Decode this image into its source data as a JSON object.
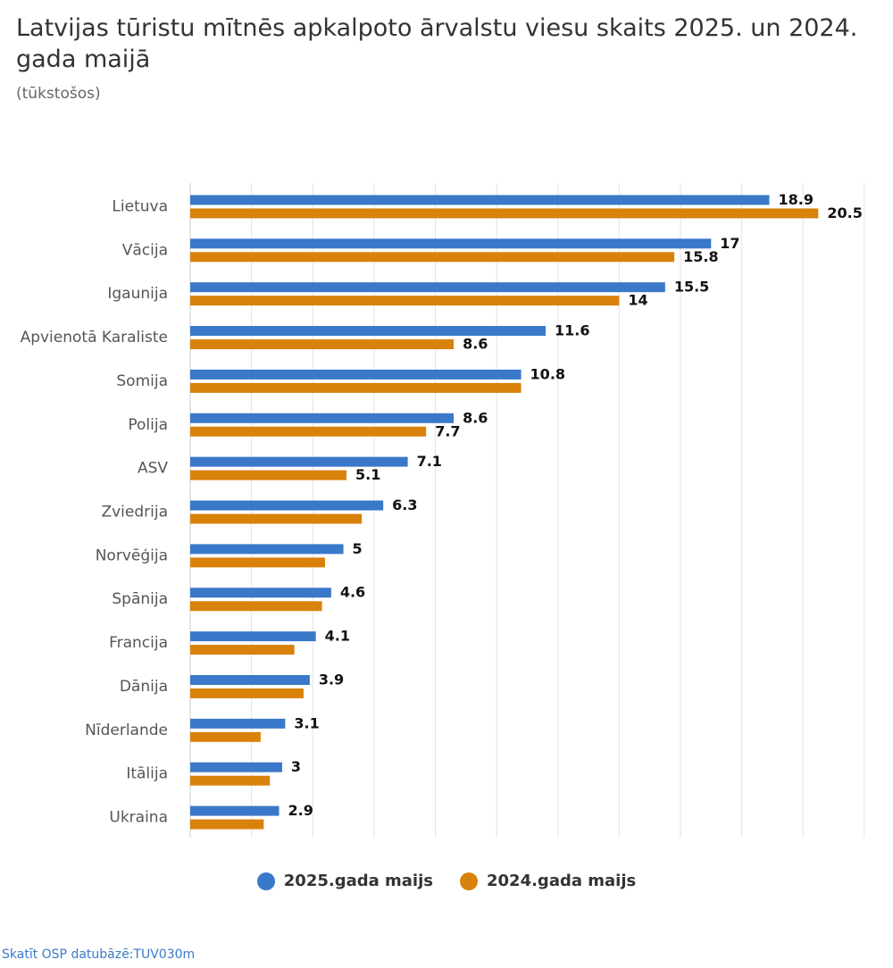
{
  "header": {
    "title": "Latvijas tūristu mītnēs apkalpoto ārvalstu viesu skaits 2025. un 2024. gada maijā",
    "subtitle": "(tūkstošos)"
  },
  "legend": [
    {
      "name": "2025.gada maijs",
      "color": "#3a78c9"
    },
    {
      "name": "2024.gada maijs",
      "color": "#d9820b"
    }
  ],
  "footer": {
    "source_link": "Skatīt OSP datubāzē:TUV030m"
  },
  "chart_data": {
    "type": "bar",
    "orientation": "horizontal",
    "title": "Latvijas tūristu mītnēs apkalpoto ārvalstu viesu skaits 2025. un 2024. gada maijā",
    "subtitle": "(tūkstošos)",
    "categories": [
      "Lietuva",
      "Vācija",
      "Igaunija",
      "Apvienotā Karaliste",
      "Somija",
      "Polija",
      "ASV",
      "Zviedrija",
      "Norvēģija",
      "Spānija",
      "Francija",
      "Dānija",
      "Nīderlande",
      "Itālija",
      "Ukraina"
    ],
    "series": [
      {
        "name": "2025.gada maijs",
        "color": "#3a78c9",
        "values": [
          18.9,
          17,
          15.5,
          11.6,
          10.8,
          8.6,
          7.1,
          6.3,
          5,
          4.6,
          4.1,
          3.9,
          3.1,
          3,
          2.9
        ],
        "labels": [
          "18.9",
          "17",
          "15.5",
          "11.6",
          "10.8",
          "8.6",
          "7.1",
          "6.3",
          "5",
          "4.6",
          "4.1",
          "3.9",
          "3.1",
          "3",
          "2.9"
        ]
      },
      {
        "name": "2024.gada maijs",
        "color": "#d9820b",
        "values": [
          20.5,
          15.8,
          14,
          8.6,
          10.8,
          7.7,
          5.1,
          5.6,
          4.4,
          4.3,
          3.4,
          3.7,
          2.3,
          2.6,
          2.4
        ],
        "labels": [
          "20.5",
          "15.8",
          "14",
          "8.6",
          null,
          "7.7",
          "5.1",
          null,
          null,
          null,
          null,
          null,
          null,
          null,
          null
        ]
      }
    ],
    "xlim": [
      0,
      22.5
    ],
    "grid": true,
    "legend_position": "bottom"
  }
}
